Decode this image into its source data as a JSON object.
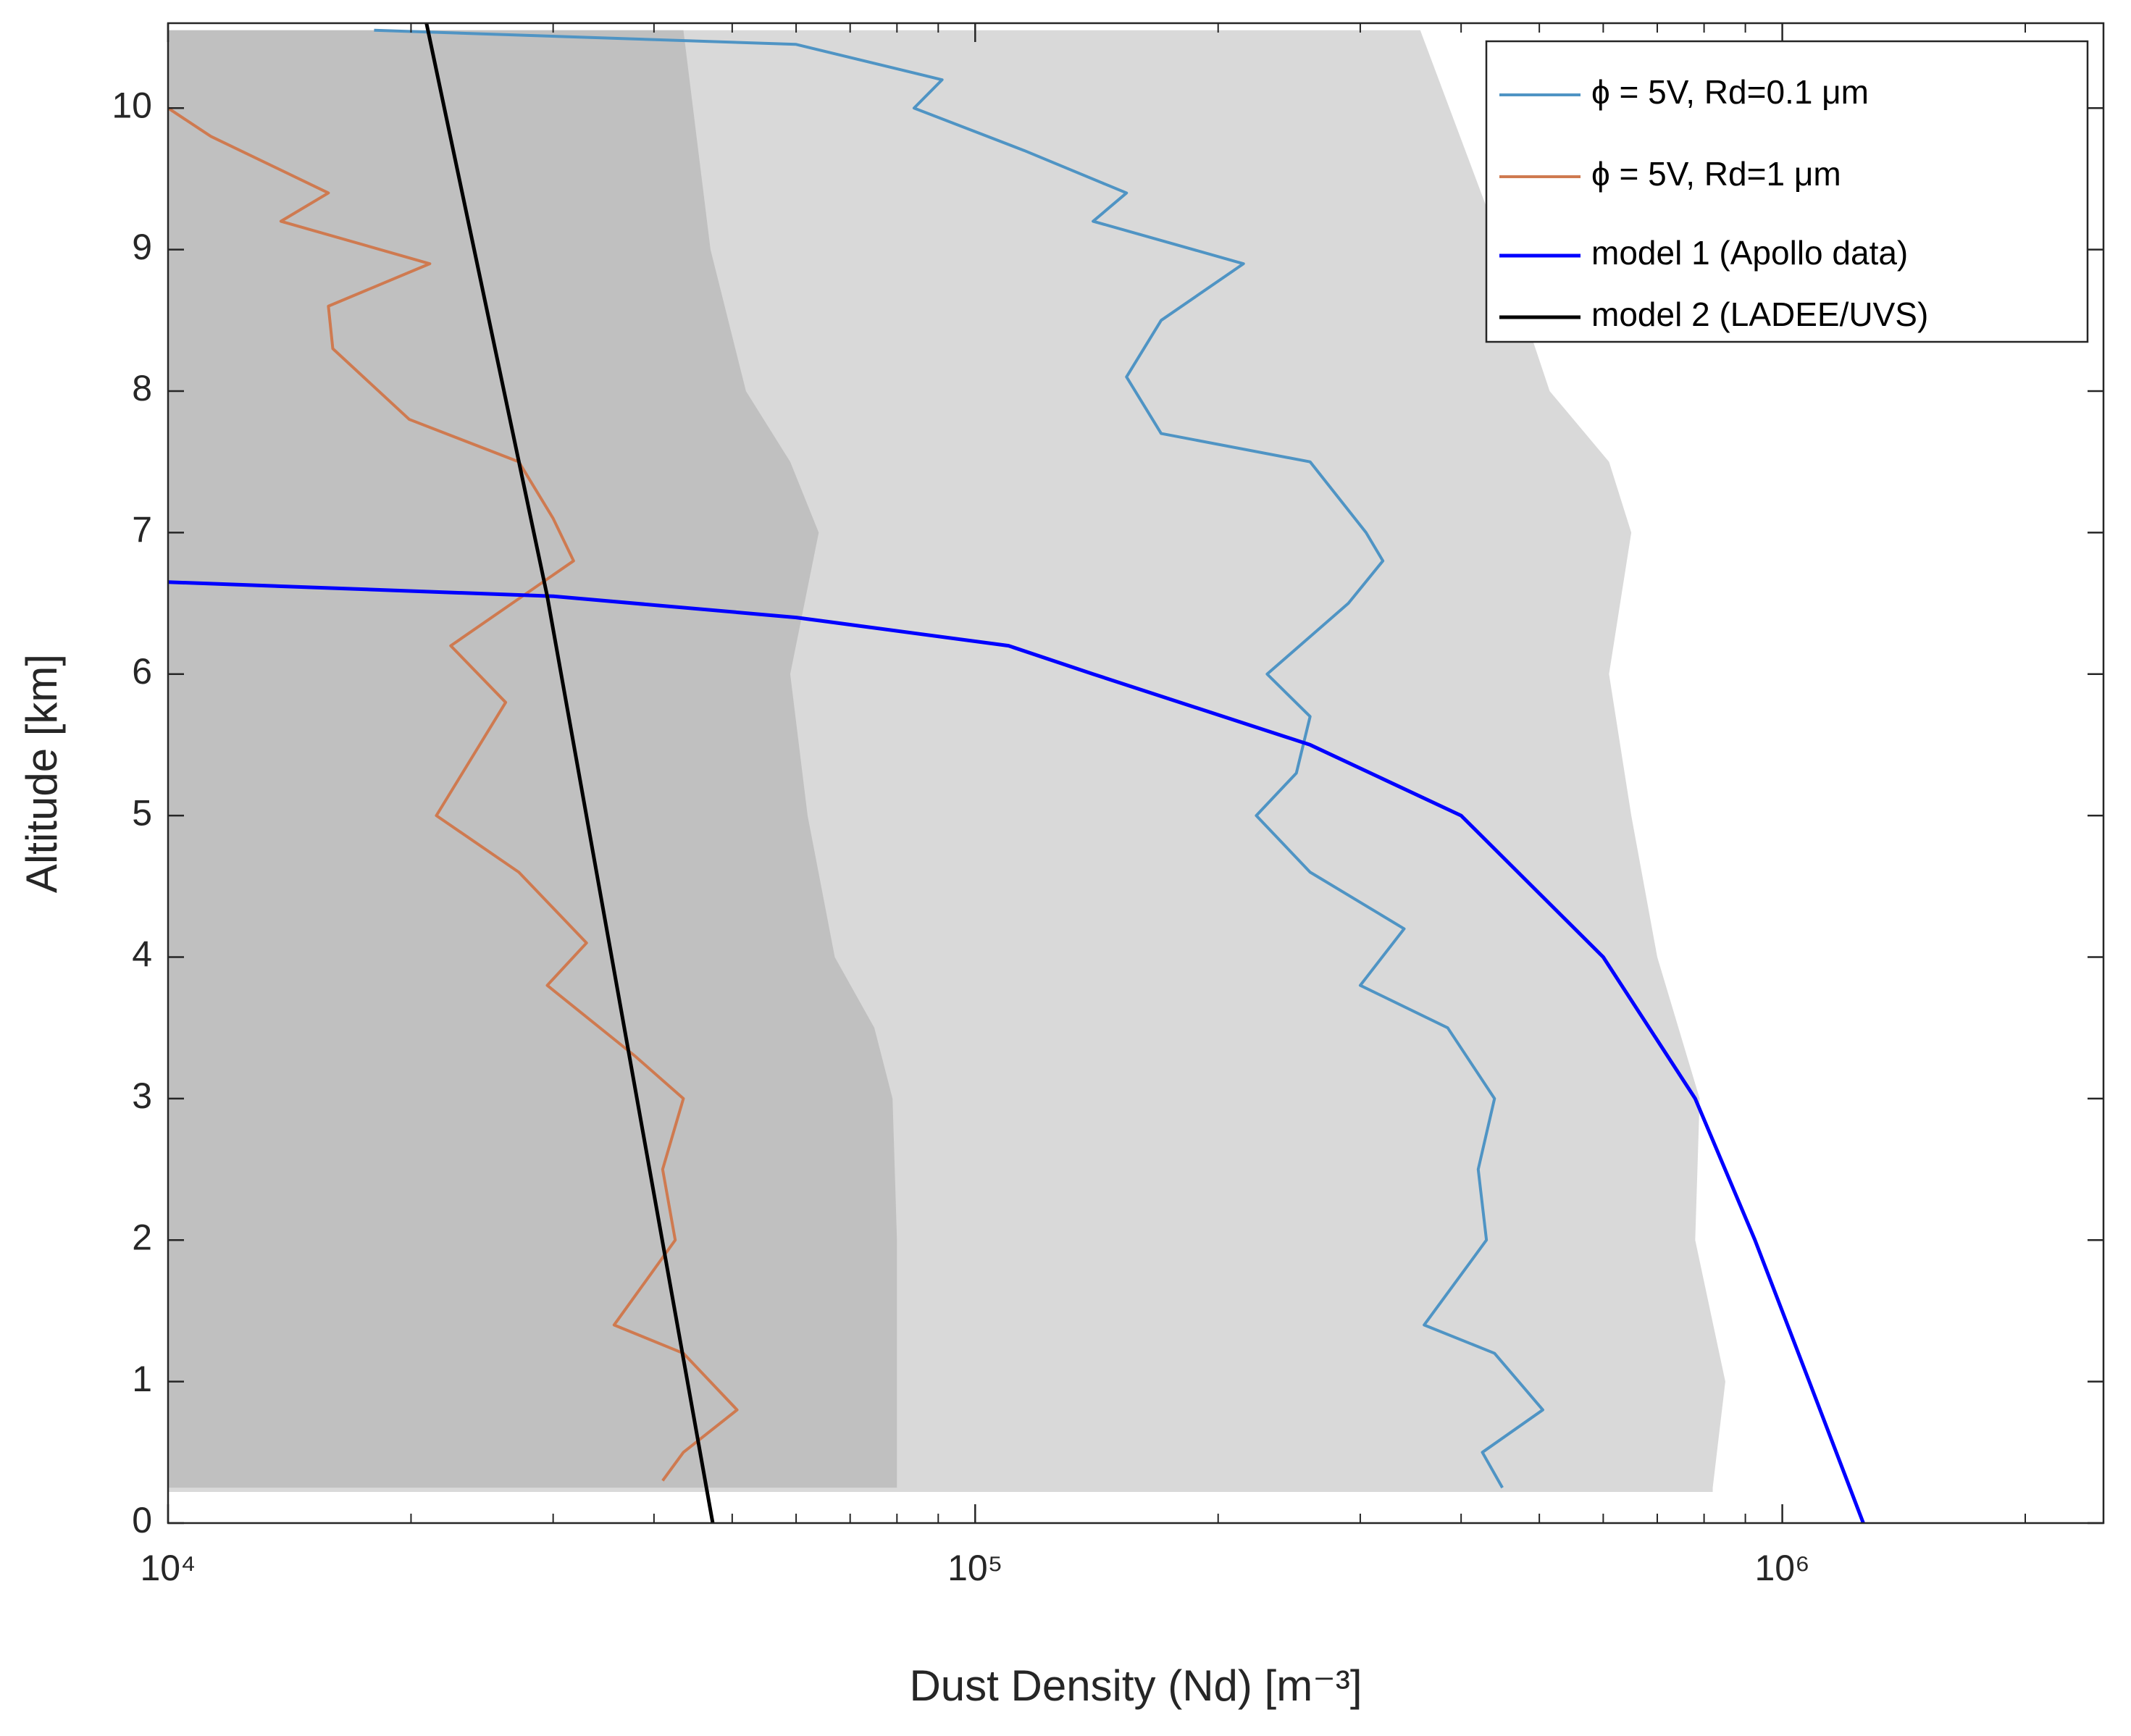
{
  "chart_data": {
    "type": "line",
    "xlabel": "Dust Density (Nd) [m⁻³]",
    "ylabel": "Altitude [km]",
    "xscale": "log",
    "xlim": [
      10000,
      2500000
    ],
    "ylim": [
      0,
      10.6
    ],
    "xticks": [
      {
        "value": 10000,
        "label": "10⁴"
      },
      {
        "value": 100000,
        "label": "10⁵"
      },
      {
        "value": 1000000,
        "label": "10⁶"
      }
    ],
    "xminorticks": [
      20000,
      30000,
      40000,
      50000,
      60000,
      70000,
      80000,
      90000,
      200000,
      300000,
      400000,
      500000,
      600000,
      700000,
      800000,
      900000,
      2000000
    ],
    "yticks": [
      0,
      1,
      2,
      3,
      4,
      5,
      6,
      7,
      8,
      9,
      10
    ],
    "legend": "upper right",
    "bands": [
      {
        "color": "#d9d9d9",
        "y": [
          0.22,
          0.25,
          1,
          2,
          3,
          4,
          5,
          6,
          7,
          7.5,
          8,
          9,
          10.55
        ],
        "upper": [
          820000,
          820000,
          850000,
          780000,
          790000,
          700000,
          650000,
          610000,
          650000,
          610000,
          515000,
          450000,
          356000
        ]
      },
      {
        "color": "#c0c0c0",
        "y": [
          0.25,
          1,
          2,
          3,
          3.5,
          4,
          5,
          6,
          7,
          7.5,
          8,
          9,
          10.55
        ],
        "upper": [
          80000,
          80000,
          80000,
          79000,
          75000,
          67000,
          62000,
          59000,
          64000,
          59000,
          52000,
          47000,
          43500
        ]
      }
    ],
    "series": [
      {
        "name": "ϕ = 5V, Rd=0.1 μm",
        "color": "#4f94c4",
        "width": 4,
        "x": [
          18000,
          60000,
          91000,
          84000,
          115000,
          154000,
          140000,
          215000,
          170000,
          154000,
          170000,
          260000,
          305000,
          320000,
          290000,
          230000,
          260000,
          250000,
          223000,
          260000,
          340000,
          300000,
          385000,
          440000,
          420000,
          430000,
          360000,
          440000,
          505000,
          425000,
          450000
        ],
        "y": [
          10.55,
          10.45,
          10.2,
          10.0,
          9.7,
          9.4,
          9.2,
          8.9,
          8.5,
          8.1,
          7.7,
          7.5,
          7.0,
          6.8,
          6.5,
          6.0,
          5.7,
          5.3,
          5.0,
          4.6,
          4.2,
          3.8,
          3.5,
          3.0,
          2.5,
          2.0,
          1.4,
          1.2,
          0.8,
          0.5,
          0.25
        ]
      },
      {
        "name": "ϕ = 5V, Rd=1 μm",
        "color": "#cf7a50",
        "width": 4,
        "x": [
          10000,
          11300,
          15800,
          13800,
          21100,
          15800,
          16000,
          19900,
          27200,
          30000,
          31800,
          22400,
          26200,
          21500,
          27200,
          33000,
          29500,
          37900,
          43500,
          41000,
          42500,
          35700,
          43500,
          50700,
          43500,
          41000
        ],
        "y": [
          10.0,
          9.8,
          9.4,
          9.2,
          8.9,
          8.6,
          8.3,
          7.8,
          7.5,
          7.1,
          6.8,
          6.2,
          5.8,
          5.0,
          4.6,
          4.1,
          3.8,
          3.3,
          3.0,
          2.5,
          2.0,
          1.4,
          1.2,
          0.8,
          0.5,
          0.3
        ]
      },
      {
        "name": "model 1 (Apollo data)",
        "color": "#0000ff",
        "width": 5,
        "x": [
          10000,
          30000,
          60000,
          110000,
          140000,
          260000,
          400000,
          600000,
          780000,
          925000,
          1080000,
          1260000
        ],
        "y": [
          6.65,
          6.55,
          6.4,
          6.2,
          6.0,
          5.5,
          5.0,
          4.0,
          3.0,
          2.0,
          1.0,
          0
        ]
      },
      {
        "name": "model 2 (LADEE/UVS)",
        "color": "#000000",
        "width": 5,
        "x": [
          20900,
          29500,
          47300
        ],
        "y": [
          10.6,
          6.55,
          0
        ]
      }
    ]
  }
}
